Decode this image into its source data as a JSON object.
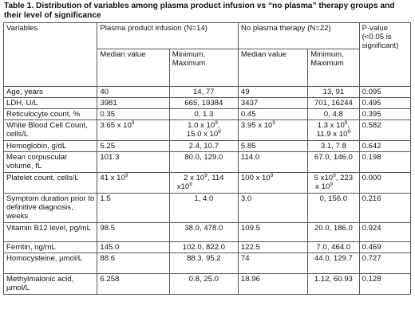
{
  "caption": "Table 1. Distribution of variables among plasma product infusion vs “no plasma” therapy groups and their level of significance",
  "header": {
    "variables": "Variables",
    "plasma_group": "Plasma product infusion (N=14)",
    "no_plasma_group": "No plasma therapy (N=22)",
    "p_value": "P-value (<0.05 is significant)",
    "median": "Median value",
    "minmax": "Minimum, Maximum"
  },
  "rows": [
    {
      "variable": "Age, years",
      "p_median": "40",
      "p_range": "14, 77",
      "n_median": "49",
      "n_range": "13, 91",
      "p": "0.095"
    },
    {
      "variable": "LDH, U/L",
      "p_median": "3981",
      "p_range": "665, 19384",
      "n_median": "3437",
      "n_range": "701, 16244",
      "p": "0.495"
    },
    {
      "variable": "Reticulocyte count, %",
      "p_median": "0.35",
      "p_range": "0, 1.3",
      "n_median": "0.45",
      "n_range": "0, 4.8",
      "p": "0.395"
    },
    {
      "variable": "White Blood Cell Count, cells/L",
      "p_median": "3.65 x 10",
      "p_range_a": "1.0 x 10",
      "p_range_b": "15.0 x 10",
      "n_median": "3.95 x 10",
      "n_range_a": "1.3 x 10",
      "n_range_b": "11.9 x 10",
      "exp": "9",
      "p": "0.582"
    },
    {
      "variable": "Hemoglobin, g/dL",
      "p_median": "5.25",
      "p_range": "2.4, 10.7",
      "n_median": "5.85",
      "n_range": "3.1, 7.8",
      "p": "0.642"
    },
    {
      "variable": "Mean corpuscular volume, fL",
      "p_median": "101.3",
      "p_range": "80.0, 129.0",
      "n_median": "114.0",
      "n_range": "67.0, 146.0",
      "p": "0.198"
    },
    {
      "variable": "Platelet count, cells/L",
      "p_median": "41 x 10",
      "p_range_a": "2 x 10",
      "p_range_b": ", 114",
      "p_range_c": "x10",
      "n_median": "100 x 10",
      "n_range_a": "5 x10",
      "n_range_b": ", 223",
      "n_range_c": "x 10",
      "exp": "9",
      "p": "0.000"
    },
    {
      "variable": "Symptom duration prior to definitive diagnosis, weeks",
      "p_median": "1.5",
      "p_range": "1, 4.0",
      "n_median": "3.0",
      "n_range": "0, 156.0",
      "p": "0.216"
    },
    {
      "variable": "Vitamin B12 level, pg/mL",
      "p_median": "98.5",
      "p_range": "38.0, 478.0",
      "n_median": "109.5",
      "n_range": "20.0, 186.0",
      "p": "0.924"
    },
    {
      "variable": "Ferritin, ng/mL",
      "p_median": "145.0",
      "p_range": "102.0, 822.0",
      "n_median": "122.5",
      "n_range": "7.0, 464.0",
      "p": "0.469"
    },
    {
      "variable": "Homocysteine, µmol/L",
      "p_median": "88.6",
      "p_range": "88.3, 95.2",
      "n_median": "74",
      "n_range": "44.0, 129.7",
      "p": "0.727"
    },
    {
      "variable": "Methylmalonic acid, µmol/L",
      "p_median": "6.258",
      "p_range": "0.8, 25.0",
      "n_median": "18.96",
      "n_range": "1.12, 60.93",
      "p": "0.128"
    }
  ]
}
